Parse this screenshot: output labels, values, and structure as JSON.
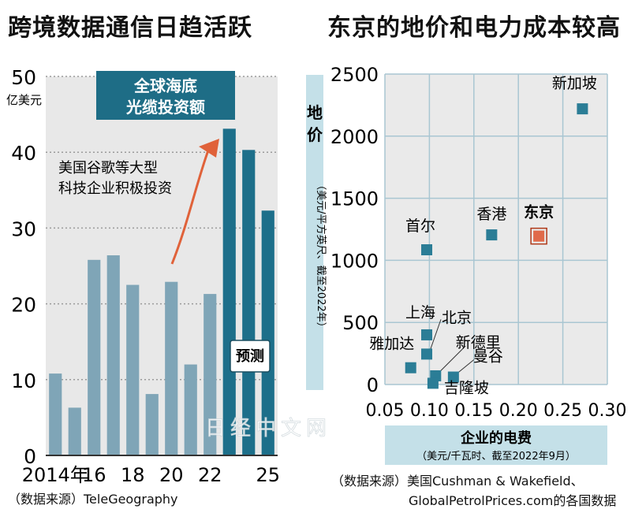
{
  "left_panel": {
    "title": "跨境数据通信日趋活跃",
    "unit_line1": "50",
    "unit_line2": "亿美元",
    "callout_box": [
      "全球海底",
      "光缆投资额"
    ],
    "annotation": [
      "美国谷歌等大型",
      "科技企业积极投资"
    ],
    "forecast_label": "预测",
    "source": "（数据来源）TeleGeography"
  },
  "right_panel": {
    "title": "东京的地价和电力成本较高",
    "ylabel_main": "地价",
    "ylabel_unit": "（美元/平方英尺、截至2022年）",
    "xlabel_main": "企业的电费",
    "xlabel_unit": "（美元/千瓦时、截至2022年9月）",
    "source_line1": "（数据来源）美国Cushman & Wakefield、",
    "source_line2": "GlobalPetrolPrices.com的各国数据"
  },
  "watermark": "日经中文网",
  "colors": {
    "hist_bar": "#7fa5b7",
    "forecast_bar": "#1d6f8a",
    "callout_box": "#1e6d86",
    "arrow": "#e0623a",
    "point": "#2b7d96",
    "tokyo_point": "#e06a4a",
    "axis_label_bg": "#c4e0e8",
    "grid": "#a9c6d2"
  },
  "chart_data": [
    {
      "type": "bar",
      "title": "跨境数据通信日趋活跃",
      "ylabel": "亿美元",
      "ylim": [
        0,
        50
      ],
      "yticks": [
        0,
        10,
        20,
        30,
        40,
        50
      ],
      "categories": [
        "2014",
        "2015",
        "2016",
        "2017",
        "2018",
        "2019",
        "2020",
        "2021",
        "2022",
        "2023",
        "2024",
        "2025"
      ],
      "xtick_labels": [
        "2014年",
        "16",
        "18",
        "20",
        "22",
        "25"
      ],
      "xtick_positions": [
        "2014",
        "2016",
        "2018",
        "2020",
        "2022",
        "2025"
      ],
      "values": [
        10.8,
        6.3,
        25.8,
        26.4,
        22.5,
        8.1,
        22.9,
        12.0,
        21.3,
        43.1,
        40.3,
        32.3
      ],
      "forecast": [
        false,
        false,
        false,
        false,
        false,
        false,
        false,
        false,
        false,
        true,
        true,
        true
      ],
      "grid": true
    },
    {
      "type": "scatter",
      "title": "东京的地价和电力成本较高",
      "xlabel": "企业的电费",
      "ylabel": "地价",
      "xlim": [
        0.05,
        0.3
      ],
      "ylim": [
        0,
        2500
      ],
      "xticks": [
        0.05,
        0.1,
        0.15,
        0.2,
        0.25,
        0.3
      ],
      "xtick_labels": [
        "0.05",
        "0.10",
        "0.15",
        "0.20",
        "0.25",
        "0.30"
      ],
      "yticks": [
        0,
        500,
        1000,
        1500,
        2000,
        2500
      ],
      "grid": true,
      "points": [
        {
          "name": "新加坡",
          "x": 0.272,
          "y": 2220
        },
        {
          "name": "东京",
          "x": 0.223,
          "y": 1195,
          "highlight": true
        },
        {
          "name": "香港",
          "x": 0.17,
          "y": 1205
        },
        {
          "name": "首尔",
          "x": 0.097,
          "y": 1085
        },
        {
          "name": "上海",
          "x": 0.097,
          "y": 400
        },
        {
          "name": "北京",
          "x": 0.097,
          "y": 245
        },
        {
          "name": "雅加达",
          "x": 0.079,
          "y": 135
        },
        {
          "name": "新德里",
          "x": 0.107,
          "y": 70
        },
        {
          "name": "曼谷",
          "x": 0.127,
          "y": 60
        },
        {
          "name": "吉隆坡",
          "x": 0.104,
          "y": 10
        }
      ]
    }
  ]
}
